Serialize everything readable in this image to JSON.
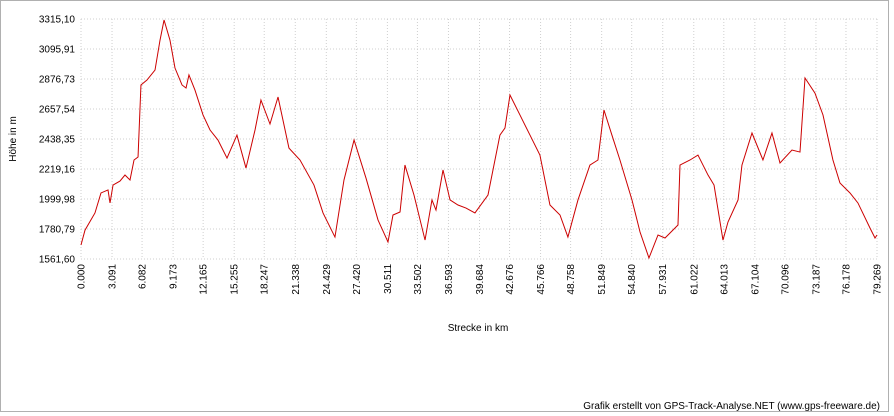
{
  "chart_data": {
    "type": "line",
    "xlabel": "Strecke in km",
    "ylabel": "Höhe in m",
    "credit": "Grafik erstellt von GPS-Track-Analyse.NET (www.gps-freeware.de)",
    "color": "#cc0000",
    "grid": true,
    "x": [
      0,
      0.4,
      1.39,
      1.99,
      2.69,
      2.89,
      3.19,
      3.88,
      4.38,
      4.88,
      5.28,
      5.68,
      5.97,
      6.57,
      7.37,
      7.87,
      8.27,
      8.86,
      9.36,
      10.06,
      10.46,
      10.75,
      11.35,
      12.15,
      12.85,
      13.64,
      14.54,
      15.53,
      16.43,
      17.33,
      17.92,
      18.82,
      19.62,
      20.71,
      21.81,
      23.2,
      24.1,
      25.29,
      26.19,
      27.19,
      28.38,
      29.58,
      30.57,
      31.07,
      31.77,
      32.26,
      33.16,
      34.26,
      34.95,
      35.35,
      36.05,
      36.75,
      37.54,
      38.34,
      39.23,
      40.53,
      41.72,
      42.22,
      42.72,
      43.71,
      44.71,
      45.7,
      46.7,
      47.7,
      48.49,
      49.49,
      50.68,
      51.48,
      52.08,
      52.87,
      53.67,
      54.87,
      55.67,
      56.56,
      57.46,
      58.16,
      59.45,
      59.65,
      60.65,
      61.44,
      62.44,
      63.04,
      63.93,
      64.43,
      65.43,
      65.82,
      66.82,
      67.91,
      68.81,
      69.61,
      70.8,
      71.6,
      72.1,
      73.09,
      73.89,
      74.88,
      75.58,
      76.58,
      77.37,
      78.57,
      79.07,
      79.27
    ],
    "values": [
      1664,
      1773,
      1898,
      2044,
      2066,
      1971,
      2102,
      2131,
      2175,
      2139,
      2285,
      2307,
      2833,
      2869,
      2942,
      3161,
      3308,
      3161,
      2957,
      2833,
      2811,
      2906,
      2796,
      2614,
      2504,
      2431,
      2299,
      2467,
      2226,
      2504,
      2723,
      2548,
      2745,
      2372,
      2285,
      2102,
      1898,
      1722,
      2139,
      2431,
      2153,
      1846,
      1686,
      1883,
      1905,
      2248,
      2029,
      1700,
      1993,
      1919,
      2212,
      1993,
      1956,
      1934,
      1898,
      2029,
      2467,
      2518,
      2760,
      2614,
      2467,
      2321,
      1956,
      1883,
      1722,
      1993,
      2248,
      2285,
      2650,
      2467,
      2285,
      1993,
      1759,
      1569,
      1737,
      1715,
      1810,
      2248,
      2285,
      2321,
      2175,
      2102,
      1700,
      1832,
      1993,
      2248,
      2482,
      2285,
      2482,
      2263,
      2358,
      2343,
      2884,
      2774,
      2614,
      2285,
      2117,
      2044,
      1971,
      1788,
      1715,
      1737
    ],
    "xlim": [
      0,
      79.269
    ],
    "ylim": [
      1561.6,
      3315.1
    ],
    "xticks": [
      {
        "value": 0,
        "label": "0.000"
      },
      {
        "value": 3.091,
        "label": "3.091"
      },
      {
        "value": 6.082,
        "label": "6.082"
      },
      {
        "value": 9.173,
        "label": "9.173"
      },
      {
        "value": 12.165,
        "label": "12.165"
      },
      {
        "value": 15.255,
        "label": "15.255"
      },
      {
        "value": 18.247,
        "label": "18.247"
      },
      {
        "value": 21.338,
        "label": "21.338"
      },
      {
        "value": 24.429,
        "label": "24.429"
      },
      {
        "value": 27.42,
        "label": "27.420"
      },
      {
        "value": 30.511,
        "label": "30.511"
      },
      {
        "value": 33.502,
        "label": "33.502"
      },
      {
        "value": 36.593,
        "label": "36.593"
      },
      {
        "value": 39.684,
        "label": "39.684"
      },
      {
        "value": 42.676,
        "label": "42.676"
      },
      {
        "value": 45.766,
        "label": "45.766"
      },
      {
        "value": 48.758,
        "label": "48.758"
      },
      {
        "value": 51.849,
        "label": "51.849"
      },
      {
        "value": 54.84,
        "label": "54.840"
      },
      {
        "value": 57.931,
        "label": "57.931"
      },
      {
        "value": 61.022,
        "label": "61.022"
      },
      {
        "value": 64.013,
        "label": "64.013"
      },
      {
        "value": 67.104,
        "label": "67.104"
      },
      {
        "value": 70.096,
        "label": "70.096"
      },
      {
        "value": 73.187,
        "label": "73.187"
      },
      {
        "value": 76.178,
        "label": "76.178"
      },
      {
        "value": 79.269,
        "label": "79.269"
      }
    ],
    "yticks": [
      {
        "value": 1561.6,
        "label": "1561,60"
      },
      {
        "value": 1780.79,
        "label": "1780,79"
      },
      {
        "value": 1999.98,
        "label": "1999,98"
      },
      {
        "value": 2219.16,
        "label": "2219,16"
      },
      {
        "value": 2438.35,
        "label": "2438,35"
      },
      {
        "value": 2657.54,
        "label": "2657,54"
      },
      {
        "value": 2876.73,
        "label": "2876,73"
      },
      {
        "value": 3095.91,
        "label": "3095,91"
      },
      {
        "value": 3315.1,
        "label": "3315,10"
      }
    ]
  }
}
